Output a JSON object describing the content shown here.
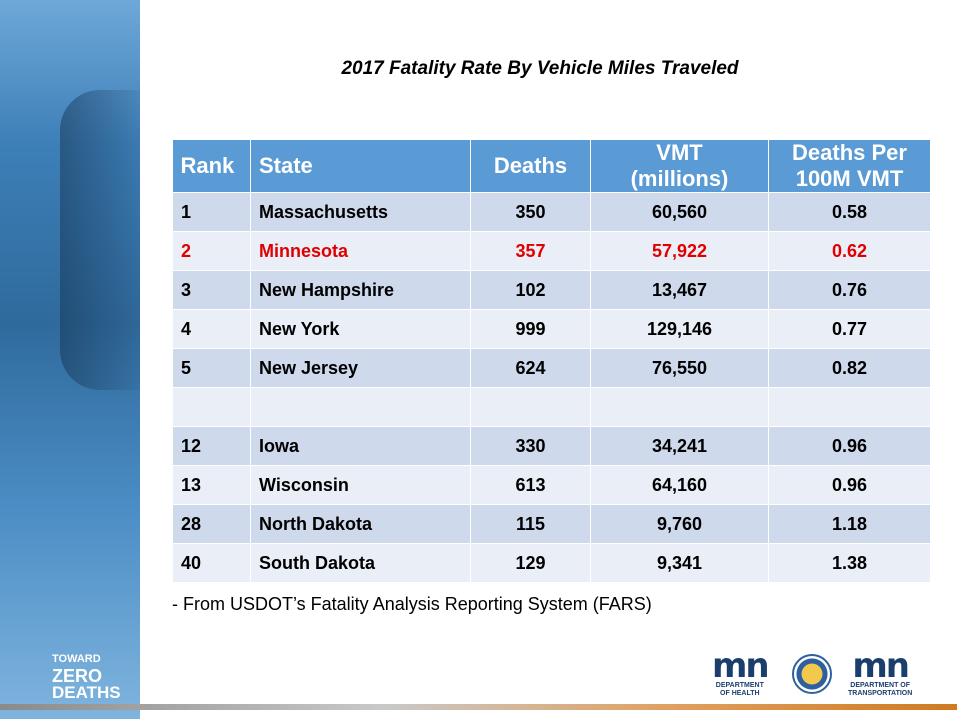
{
  "header": {
    "title": "2017 Fatality Rate By Vehicle Miles Traveled"
  },
  "table": {
    "columns": [
      "Rank",
      "State",
      "Deaths",
      "VMT\n(millions)",
      "Deaths Per\n100M VMT"
    ],
    "rows": [
      [
        "1",
        "Massachusetts",
        "350",
        "60,560",
        "0.58"
      ],
      [
        "2",
        "Minnesota",
        "357",
        "57,922",
        "0.62"
      ],
      [
        "3",
        "New Hampshire",
        "102",
        "13,467",
        "0.76"
      ],
      [
        "4",
        "New York",
        "999",
        "129,146",
        "0.77"
      ],
      [
        "5",
        "New Jersey",
        "624",
        "76,550",
        "0.82"
      ],
      [
        "12",
        "Iowa",
        "330",
        "34,241",
        "0.96"
      ],
      [
        "13",
        "Wisconsin",
        "613",
        "64,160",
        "0.96"
      ],
      [
        "28",
        "North Dakota",
        "115",
        "9,760",
        "1.18"
      ],
      [
        "40",
        "South Dakota",
        "129",
        "9,341",
        "1.38"
      ]
    ]
  },
  "footnote": "- From USDOT’s Fatality Analysis Reporting System (FARS)",
  "logos": {
    "tzd": [
      "TOWARD",
      "ZERO",
      "DEATHS"
    ],
    "health": {
      "mark": "mn",
      "dept": "DEPARTMENT\nOF HEALTH"
    },
    "transportation": {
      "mark": "mn",
      "dept": "DEPARTMENT OF\nTRANSPORTATION"
    }
  }
}
